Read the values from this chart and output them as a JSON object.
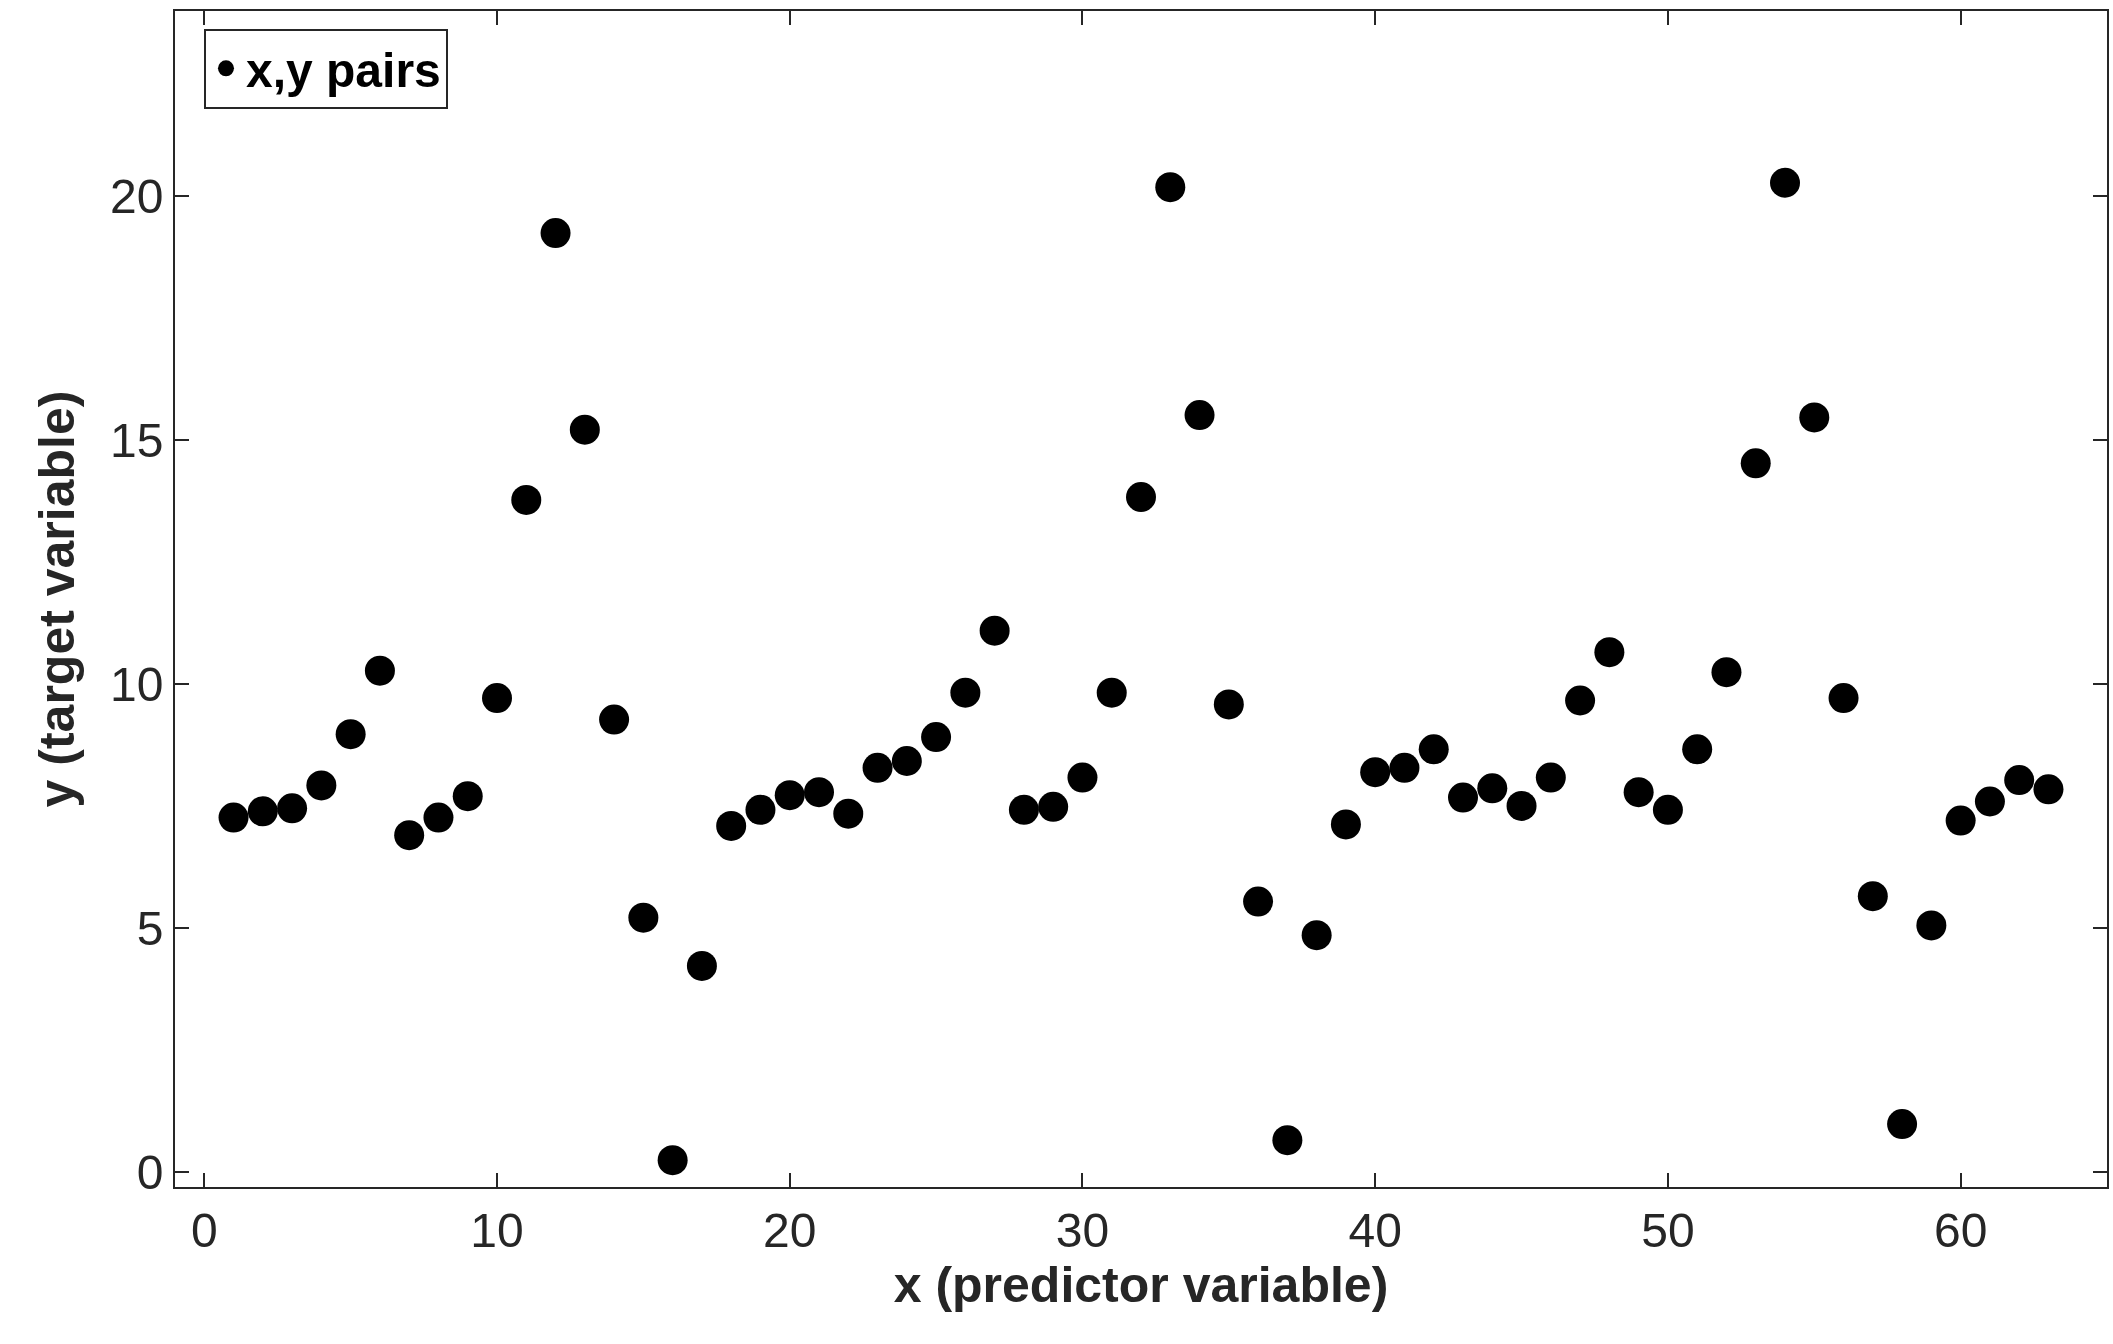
{
  "chart_data": {
    "type": "scatter",
    "xlabel": "x (predictor variable)",
    "ylabel": "y (target variable)",
    "x": [
      1,
      2,
      3,
      4,
      5,
      6,
      7,
      8,
      9,
      10,
      11,
      12,
      13,
      14,
      15,
      16,
      17,
      18,
      19,
      20,
      21,
      22,
      23,
      24,
      25,
      26,
      27,
      28,
      29,
      30,
      31,
      32,
      33,
      34,
      35,
      36,
      37,
      38,
      39,
      40,
      41,
      42,
      43,
      44,
      45,
      46,
      47,
      48,
      49,
      50,
      51,
      52,
      53,
      54,
      55,
      56,
      57,
      58,
      59,
      60,
      61,
      62,
      63
    ],
    "series": [
      {
        "name": "x,y pairs",
        "color": "#000000",
        "values": [
          7.27,
          7.4,
          7.46,
          7.93,
          8.98,
          10.28,
          6.91,
          7.27,
          7.71,
          9.72,
          13.78,
          19.25,
          15.22,
          9.28,
          5.22,
          0.25,
          4.23,
          7.1,
          7.43,
          7.73,
          7.79,
          7.35,
          8.29,
          8.43,
          8.92,
          9.83,
          11.1,
          7.43,
          7.49,
          8.09,
          9.83,
          13.84,
          20.19,
          15.52,
          9.59,
          5.55,
          0.66,
          4.86,
          7.13,
          8.2,
          8.29,
          8.67,
          7.68,
          7.87,
          7.51,
          8.09,
          9.67,
          10.66,
          7.79,
          7.43,
          8.67,
          10.25,
          14.53,
          20.28,
          15.47,
          9.72,
          5.66,
          0.99,
          5.06,
          7.21,
          7.6,
          8.04,
          7.85
        ]
      }
    ],
    "xlim": [
      -1,
      65
    ],
    "ylim": [
      -0.3,
      23.8
    ],
    "xticks": [
      0,
      10,
      20,
      30,
      40,
      50,
      60
    ],
    "yticks": [
      0,
      5,
      10,
      15,
      20
    ],
    "marker": "circle",
    "legend": "top left"
  }
}
